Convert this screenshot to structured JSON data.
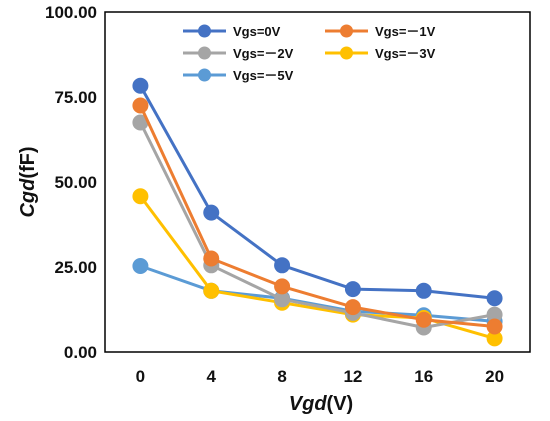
{
  "chart_data": {
    "type": "line",
    "x": [
      0,
      4,
      8,
      12,
      16,
      20
    ],
    "xlabel": {
      "var": "Vgd",
      "unit": "(V)"
    },
    "ylabel": {
      "var": "Cgd",
      "unit": "(fF)"
    },
    "ylim": [
      0,
      100
    ],
    "yticks": [
      "0.00",
      "25.00",
      "50.00",
      "75.00",
      "100.00"
    ],
    "xticks": [
      "0",
      "4",
      "8",
      "12",
      "16",
      "20"
    ],
    "grid": false,
    "legend_position": "top-right",
    "series": [
      {
        "name": "Vgs=0V",
        "color": "#4472C4",
        "values": [
          78.3,
          41.0,
          25.5,
          18.5,
          18.0,
          15.8
        ]
      },
      {
        "name": "Vgs=－1V",
        "color": "#ED7D31",
        "values": [
          72.5,
          27.5,
          19.3,
          13.2,
          9.5,
          7.5
        ]
      },
      {
        "name": "Vgs=－2V",
        "color": "#A5A5A5",
        "values": [
          67.5,
          25.5,
          15.5,
          11.5,
          7.2,
          11.0
        ]
      },
      {
        "name": "Vgs=－3V",
        "color": "#FFC000",
        "values": [
          45.8,
          18.0,
          14.5,
          11.0,
          10.0,
          4.0
        ]
      },
      {
        "name": "Vgs=－5V",
        "color": "#5B9BD5",
        "values": [
          25.3,
          18.0,
          15.8,
          12.0,
          10.8,
          9.0
        ]
      }
    ]
  }
}
